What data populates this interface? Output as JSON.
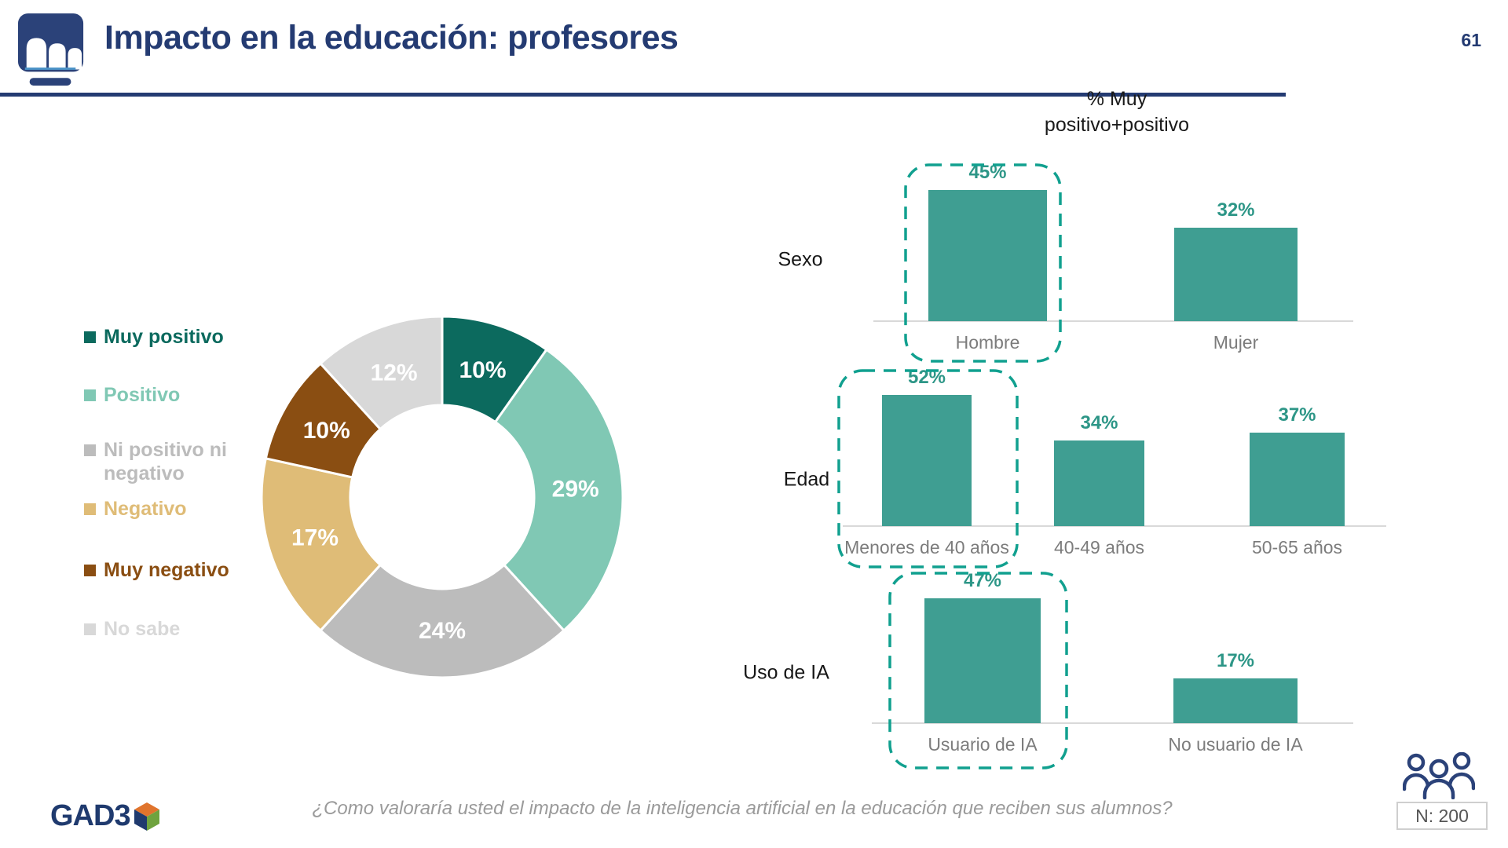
{
  "header": {
    "title": "Impacto en la educación: profesores",
    "page_number": "61"
  },
  "charts_title": "% Muy\npositivo+positivo",
  "colors": {
    "navy": "#243b72",
    "bar_teal": "#3f9e92",
    "value_label_teal": "#2d9687",
    "highlight_dash_teal": "#11a08f",
    "axis_gray": "#d9d9d9",
    "category_gray": "#7c7c7c"
  },
  "chart_data": [
    {
      "type": "pie",
      "donut": true,
      "legend_position": "left",
      "labels": [
        "Muy positivo",
        "Positivo",
        "Ni positivo ni negativo",
        "Negativo",
        "Muy negativo",
        "No sabe"
      ],
      "values": [
        10,
        29,
        24,
        17,
        10,
        12
      ],
      "value_labels": [
        "10%",
        "29%",
        "24%",
        "17%",
        "10%",
        "12%"
      ],
      "colors": [
        "#0c6a5e",
        "#80c8b4",
        "#bcbcbc",
        "#dfbc77",
        "#8a4e12",
        "#d8d8d8"
      ]
    },
    {
      "type": "bar",
      "group": "Sexo",
      "categories": [
        "Hombre",
        "Mujer"
      ],
      "values": [
        45,
        32
      ],
      "value_labels": [
        "45%",
        "32%"
      ],
      "highlighted": [
        true,
        false
      ],
      "ylim": [
        0,
        50
      ]
    },
    {
      "type": "bar",
      "group": "Edad",
      "categories": [
        "Menores de 40 años",
        "40-49 años",
        "50-65 años"
      ],
      "values": [
        52,
        34,
        37
      ],
      "value_labels": [
        "52%",
        "34%",
        "37%"
      ],
      "highlighted": [
        true,
        false,
        false
      ],
      "ylim": [
        0,
        60
      ]
    },
    {
      "type": "bar",
      "group": "Uso de IA",
      "categories": [
        "Usuario de IA",
        "No usuario de IA"
      ],
      "values": [
        47,
        17
      ],
      "value_labels": [
        "47%",
        "17%"
      ],
      "highlighted": [
        true,
        false
      ],
      "ylim": [
        0,
        55
      ]
    }
  ],
  "footer": {
    "brand": "GAD3",
    "question": "¿Como valoraría usted el impacto de la inteligencia artificial en la educación que reciben sus alumnos?",
    "sample_label": "N: 200"
  }
}
